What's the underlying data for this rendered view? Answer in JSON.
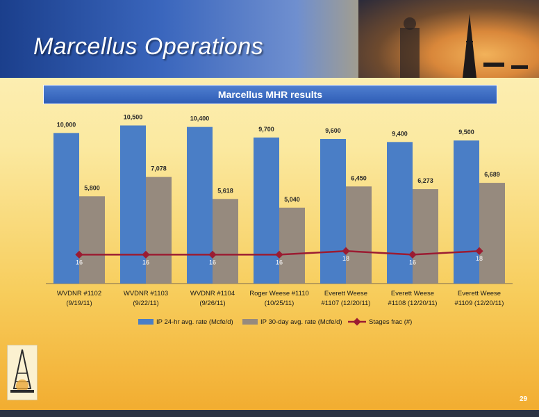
{
  "page": {
    "title": "Marcellus Operations",
    "page_number": "29"
  },
  "chart_data": {
    "type": "bar",
    "title": "Marcellus MHR results",
    "categories": [
      [
        "WVDNR #1102",
        "(9/19/11)"
      ],
      [
        "WVDNR #1103",
        "(9/22/11)"
      ],
      [
        "WVDNR #1104",
        "(9/26/11)"
      ],
      [
        "Roger Weese #1110",
        "(10/25/11)"
      ],
      [
        "Everett Weese",
        "#1107 (12/20/11)"
      ],
      [
        "Everett Weese",
        "#1108 (12/20/11)"
      ],
      [
        "Everett Weese",
        "#1109 (12/20/11)"
      ]
    ],
    "series": [
      {
        "name": "IP 24-hr avg. rate (Mcfe/d)",
        "type": "bar",
        "color": "#4a7ec6",
        "values": [
          10000,
          10500,
          10400,
          9700,
          9600,
          9400,
          9500
        ],
        "labels": [
          "10,000",
          "10,500",
          "10,400",
          "9,700",
          "9,600",
          "9,400",
          "9,500"
        ]
      },
      {
        "name": "IP 30-day avg. rate (Mcfe/d)",
        "type": "bar",
        "color": "#968a7e",
        "values": [
          5800,
          7078,
          5618,
          5040,
          6450,
          6273,
          6689
        ],
        "labels": [
          "5,800",
          "7,078",
          "5,618",
          "5,040",
          "6,450",
          "6,273",
          "6,689"
        ]
      },
      {
        "name": "Stages frac (#)",
        "type": "line",
        "color": "#9b1c32",
        "values": [
          16,
          16,
          16,
          16,
          18,
          16,
          18
        ],
        "labels": [
          "16",
          "16",
          "16",
          "16",
          "18",
          "16",
          "18"
        ]
      }
    ],
    "ylim": [
      0,
      12000
    ],
    "stages_ylim": [
      0,
      100
    ],
    "legend_position": "bottom",
    "grid": false
  }
}
